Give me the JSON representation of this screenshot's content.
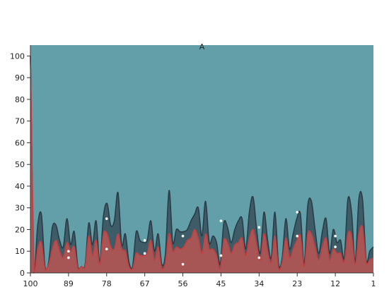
{
  "chart_data": {
    "type": "area",
    "title": "A",
    "xlabel": "",
    "ylabel": "",
    "x_reversed": true,
    "xlim": [
      100,
      1
    ],
    "ylim": [
      0,
      105
    ],
    "x_ticks": [
      100,
      89,
      78,
      67,
      56,
      45,
      34,
      23,
      12,
      1
    ],
    "y_ticks": [
      0,
      10,
      20,
      30,
      40,
      50,
      60,
      70,
      80,
      90,
      100
    ],
    "background_color": "#639fa8",
    "grid": false,
    "legend": "none",
    "series": [
      {
        "color": "#3d5c68",
        "stroke": "#2a3c46",
        "values": [
          100,
          0,
          22,
          27,
          3,
          5,
          21,
          22,
          15,
          12,
          25,
          13,
          19,
          3,
          3,
          4,
          23,
          13,
          24,
          5,
          26,
          32,
          22,
          24,
          37,
          13,
          18,
          5,
          3,
          19,
          15,
          14,
          15,
          24,
          10,
          18,
          4,
          9,
          38,
          14,
          20,
          19,
          19,
          20,
          24,
          27,
          30,
          17,
          33,
          14,
          17,
          14,
          4,
          23,
          21,
          14,
          20,
          24,
          25,
          11,
          28,
          35,
          20,
          9,
          28,
          15,
          7,
          28,
          4,
          7,
          25,
          11,
          18,
          25,
          27,
          4,
          31,
          33,
          20,
          9,
          19,
          25,
          9,
          20,
          14,
          15,
          7,
          34,
          28,
          5,
          34,
          34,
          6,
          10,
          12
        ]
      },
      {
        "color": "#a85556",
        "stroke": "#c24040",
        "values": [
          100,
          0,
          11,
          14,
          2,
          4,
          11,
          15,
          10,
          7,
          14,
          10,
          12,
          2,
          3,
          3,
          17,
          8,
          15,
          4,
          18,
          18,
          12,
          11,
          18,
          11,
          10,
          3,
          2,
          9,
          8,
          8,
          9,
          15,
          6,
          12,
          2,
          5,
          18,
          10,
          12,
          11,
          12,
          15,
          16,
          20,
          16,
          9,
          18,
          11,
          11,
          8,
          2,
          15,
          14,
          9,
          13,
          14,
          16,
          8,
          16,
          20,
          13,
          6,
          18,
          10,
          5,
          17,
          2,
          5,
          16,
          7,
          11,
          15,
          17,
          3,
          18,
          18,
          12,
          6,
          12,
          16,
          6,
          11,
          9,
          9,
          5,
          18,
          17,
          4,
          18,
          21,
          5,
          6,
          7
        ]
      }
    ],
    "points": [
      {
        "x": 89,
        "y": 10
      },
      {
        "x": 89,
        "y": 7
      },
      {
        "x": 78,
        "y": 25
      },
      {
        "x": 78,
        "y": 11
      },
      {
        "x": 67,
        "y": 15
      },
      {
        "x": 67,
        "y": 9
      },
      {
        "x": 56,
        "y": 17
      },
      {
        "x": 56,
        "y": 4
      },
      {
        "x": 45,
        "y": 24
      },
      {
        "x": 45,
        "y": 8
      },
      {
        "x": 34,
        "y": 21
      },
      {
        "x": 34,
        "y": 7
      },
      {
        "x": 23,
        "y": 28
      },
      {
        "x": 23,
        "y": 17
      },
      {
        "x": 12,
        "y": 17
      },
      {
        "x": 12,
        "y": 12
      }
    ]
  }
}
